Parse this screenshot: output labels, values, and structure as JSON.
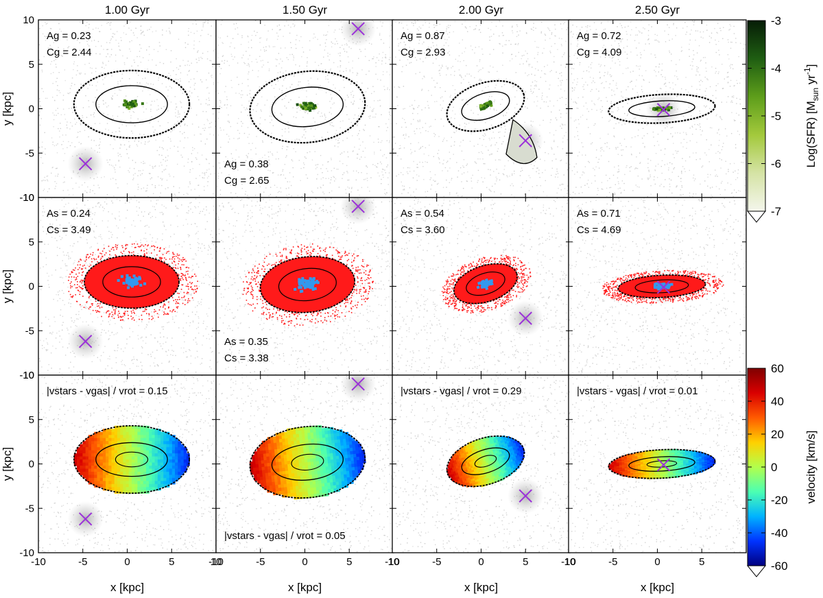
{
  "chart_data": {
    "type": "scatter",
    "description_kind": "panel grid of galaxy merger snapshots",
    "xlabel": "x [kpc]",
    "ylabel": "y [kpc]",
    "xlim": [
      -10,
      10
    ],
    "ylim": [
      -10,
      10
    ],
    "x_ticks": [
      -10,
      -5,
      0,
      5,
      10
    ],
    "y_ticks": [
      -10,
      -5,
      0,
      5,
      10
    ],
    "x_ticks_last_column": [
      -10,
      -5,
      0,
      5
    ],
    "times": [
      "1.00 Gyr",
      "1.50 Gyr",
      "2.00 Gyr",
      "2.50 Gyr"
    ],
    "rows": [
      {
        "name": "gas / SFR",
        "colorbar": {
          "label": "Log(SFR) [M",
          "label_sub": "sun",
          "label_mid": " yr",
          "label_sup": "-1",
          "label_end": "]",
          "ticks": [
            -3,
            -4,
            -5,
            -6,
            -7
          ],
          "range": [
            -7,
            -3
          ],
          "colors": [
            "#f4f6ec",
            "#d5e3a5",
            "#a3c93c",
            "#5e9e1b",
            "#1f5e12",
            "#061d07"
          ]
        },
        "panels": [
          {
            "annotations": [
              {
                "lines": [
                  "Ag = 0.23",
                  "Cg = 2.44"
                ],
                "pos": "top-left"
              }
            ],
            "companion": [
              -4.7,
              -6.2
            ]
          },
          {
            "annotations": [
              {
                "lines": [
                  "Ag = 0.38",
                  "Cg = 2.65"
                ],
                "pos": "bottom-left"
              }
            ],
            "companion": [
              6.0,
              9.0
            ]
          },
          {
            "annotations": [
              {
                "lines": [
                  "Ag = 0.87",
                  "Cg = 2.93"
                ],
                "pos": "top-left"
              }
            ],
            "companion": [
              5.0,
              -3.6
            ]
          },
          {
            "annotations": [
              {
                "lines": [
                  "Ag = 0.72",
                  "Cg = 4.09"
                ],
                "pos": "top-left"
              }
            ],
            "companion": [
              0.7,
              -0.1
            ]
          }
        ]
      },
      {
        "name": "stars",
        "panels": [
          {
            "annotations": [
              {
                "lines": [
                  "As = 0.24",
                  "Cs = 3.49"
                ],
                "pos": "top-left"
              }
            ],
            "companion": [
              -4.7,
              -6.2
            ]
          },
          {
            "annotations": [
              {
                "lines": [
                  "As = 0.35",
                  "Cs = 3.38"
                ],
                "pos": "bottom-left"
              }
            ],
            "companion": [
              6.0,
              9.0
            ]
          },
          {
            "annotations": [
              {
                "lines": [
                  "As = 0.54",
                  "Cs = 3.60"
                ],
                "pos": "top-left"
              }
            ],
            "companion": [
              5.0,
              -3.6
            ]
          },
          {
            "annotations": [
              {
                "lines": [
                  "As = 0.71",
                  "Cs = 4.69"
                ],
                "pos": "top-left"
              }
            ],
            "companion": [
              0.7,
              -0.1
            ]
          }
        ]
      },
      {
        "name": "velocity",
        "colorbar": {
          "label": "velocity [km/s]",
          "ticks": [
            60,
            40,
            20,
            0,
            -20,
            -40,
            -60
          ],
          "range": [
            -60,
            60
          ],
          "colors": [
            "#00007f",
            "#0033ff",
            "#00b3ff",
            "#4cffb2",
            "#b2ff4c",
            "#ffd000",
            "#ff5a00",
            "#d90000",
            "#7f0000"
          ]
        },
        "panels": [
          {
            "annotations": [
              {
                "lines": [
                  "|vstars - vgas| / vrot = 0.15"
                ],
                "pos": "top-left"
              }
            ],
            "companion": [
              -4.7,
              -6.2
            ]
          },
          {
            "annotations": [
              {
                "lines": [
                  "|vstars - vgas| / vrot = 0.05"
                ],
                "pos": "bottom-left"
              }
            ],
            "companion": [
              6.0,
              9.0
            ]
          },
          {
            "annotations": [
              {
                "lines": [
                  "|vstars - vgas| / vrot = 0.29"
                ],
                "pos": "top-left"
              }
            ],
            "companion": [
              5.0,
              -3.6
            ]
          },
          {
            "annotations": [
              {
                "lines": [
                  "|vstars - vgas| / vrot = 0.01"
                ],
                "pos": "top-left"
              }
            ],
            "companion": [
              0.7,
              -0.1
            ]
          }
        ]
      }
    ],
    "colors": {
      "background_particles": "#c8c8c8",
      "contour": "#000000",
      "companion_marker": "#9b30d9",
      "old_stars": "#ff1a1a",
      "young_stars": "#3399ee"
    }
  }
}
